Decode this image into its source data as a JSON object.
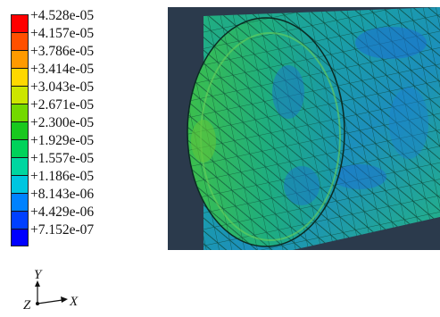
{
  "legend": {
    "labels": [
      "+4.528e-05",
      "+4.157e-05",
      "+3.786e-05",
      "+3.414e-05",
      "+3.043e-05",
      "+2.671e-05",
      "+2.300e-05",
      "+1.929e-05",
      "+1.557e-05",
      "+1.186e-05",
      "+8.143e-06",
      "+4.429e-06",
      "+7.152e-07"
    ],
    "colors": [
      "#ff0000",
      "#ff5000",
      "#ff9a00",
      "#ffd800",
      "#cce600",
      "#73d900",
      "#19c81e",
      "#00d25a",
      "#00d6a0",
      "#00c6e0",
      "#0082ff",
      "#0040ff",
      "#0000ff"
    ]
  },
  "triad": {
    "y": "Y",
    "z": "Z",
    "x": "X"
  },
  "viewport": {
    "background": "#2a3848",
    "shell_colors": [
      "#1fae8a",
      "#17a09a",
      "#1a8fb4",
      "#2cb86a",
      "#5bc53b"
    ]
  }
}
